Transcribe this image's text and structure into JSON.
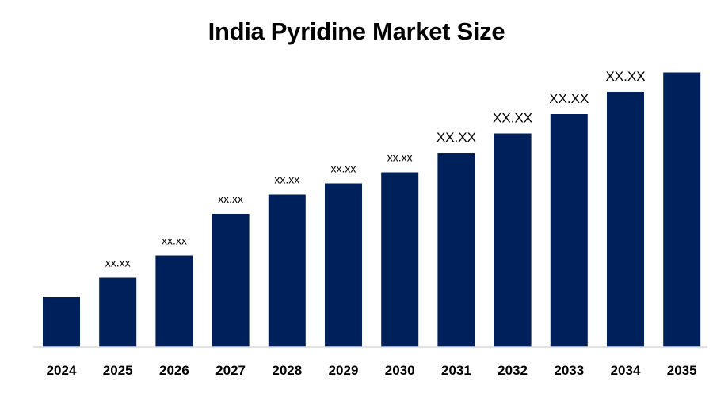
{
  "chart_data": {
    "type": "bar",
    "title": "India Pyridine Market Size",
    "xlabel": "",
    "ylabel": "",
    "categories": [
      "2024",
      "2025",
      "2026",
      "2027",
      "2028",
      "2029",
      "2030",
      "2031",
      "2032",
      "2033",
      "2034",
      "2035"
    ],
    "values": [
      18,
      25,
      33,
      48,
      55,
      59,
      63,
      70,
      77,
      84,
      92,
      99
    ],
    "data_labels": [
      "",
      "xx.xx",
      "xx.xx",
      "xx.xx",
      "xx.xx",
      "xx.xx",
      "xx.xx",
      "XX.XX",
      "XX.XX",
      "XX.XX",
      "XX.XX",
      ""
    ],
    "ylim": [
      0,
      100
    ],
    "grid": false,
    "legend": "none",
    "bar_color": "#00205b",
    "axis_color": "#d9d9d9"
  }
}
